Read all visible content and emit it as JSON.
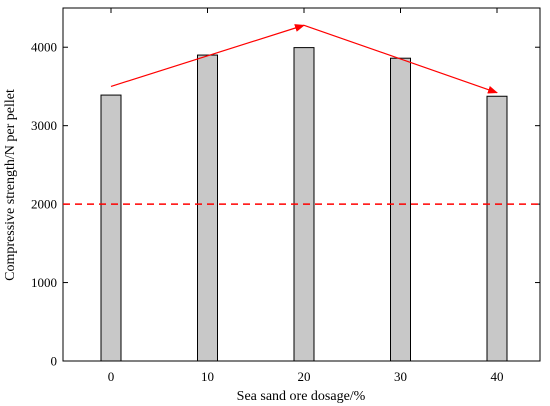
{
  "chart_data": {
    "type": "bar",
    "categories": [
      "0",
      "10",
      "20",
      "30",
      "40"
    ],
    "values": [
      3390,
      3900,
      3995,
      3860,
      3375
    ],
    "xlabel": "Sea sand ore dosage/%",
    "ylabel": "Compressive strength/N per pellet",
    "ylim": [
      0,
      4500
    ],
    "yticks": [
      0,
      1000,
      2000,
      3000,
      4000
    ],
    "reference_line": {
      "value": 2000,
      "style": "dashed",
      "color": "#ff0000"
    },
    "trend_arrows": [
      {
        "from": {
          "category": "0",
          "value": 3500
        },
        "to": {
          "category": "20",
          "value": 4280
        }
      },
      {
        "from": {
          "category": "20",
          "value": 4280
        },
        "to": {
          "category": "40",
          "value": 3420
        }
      }
    ],
    "colors": {
      "bar_fill": "#c8c8c8",
      "bar_stroke": "#000000",
      "arrow": "#ff0000"
    },
    "grid": false,
    "legend": "none"
  }
}
